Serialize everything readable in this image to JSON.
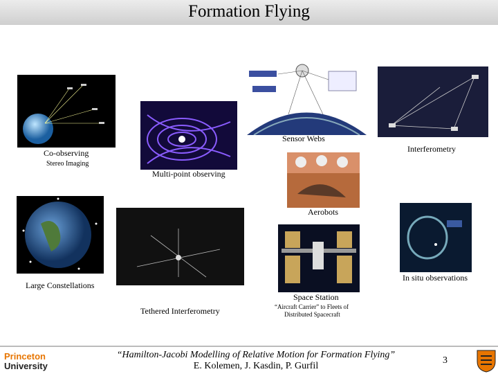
{
  "header": {
    "title": "Formation Flying"
  },
  "captions": {
    "co_observing": "Co-observing",
    "stereo_imaging": "Stereo Imaging",
    "multi_point": "Multi-point observing",
    "sensor_webs": "Sensor Webs",
    "interferometry": "Interferometry",
    "aerobots": "Aerobots",
    "large_constellations": "Large Constellations",
    "in_situ": "In situ observations",
    "space_station": "Space Station",
    "tethered": "Tethered Interferometry",
    "aircraft_carrier_1": "“Aircraft Carrier” to Fleets of",
    "aircraft_carrier_2": "Distributed Spacecraft"
  },
  "footer": {
    "logo_1": "Princeton",
    "logo_2": "University",
    "citation": "“Hamilton-Jacobi Modelling of Relative Motion for Formation Flying”",
    "authors": "E. Kolemen, J. Kasdin, P. Gurfil",
    "page": "3"
  }
}
